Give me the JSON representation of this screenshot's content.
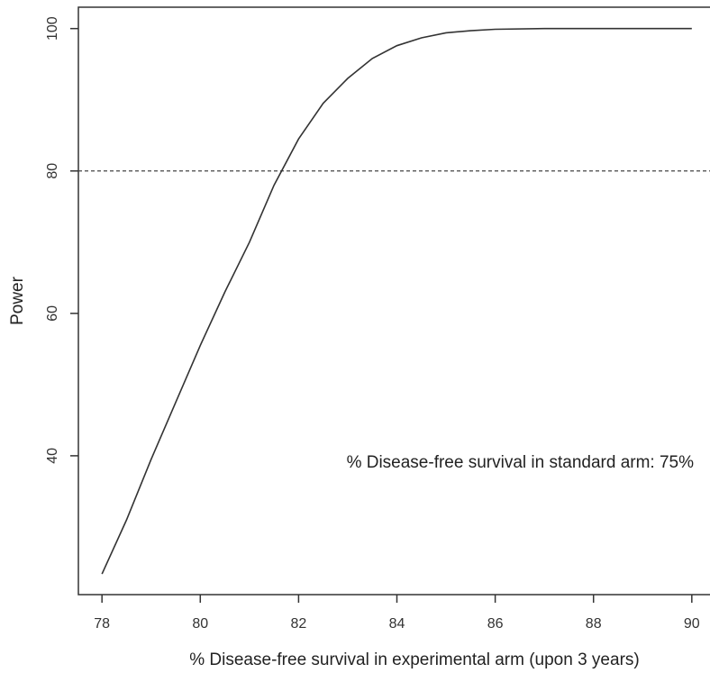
{
  "chart_data": {
    "type": "line",
    "xlabel": "% Disease-free survival in experimental arm (upon 3 years)",
    "ylabel": "Power",
    "annotation": "% Disease-free survival in standard arm: 75%",
    "x": [
      78,
      78.5,
      79,
      79.5,
      80,
      80.5,
      81,
      81.5,
      82,
      82.5,
      83,
      83.5,
      84,
      84.5,
      85,
      85.5,
      86,
      87,
      88,
      89,
      90
    ],
    "values": [
      23.4,
      31,
      39.5,
      47.5,
      55.5,
      63,
      70,
      78,
      84.5,
      89.5,
      93,
      95.8,
      97.6,
      98.7,
      99.4,
      99.7,
      99.9,
      100,
      100,
      100,
      100
    ],
    "color": "#333333",
    "reference_line": 80,
    "xlim": [
      77.52,
      90.37
    ],
    "ylim": [
      20.5,
      103
    ],
    "xticks": [
      78,
      80,
      82,
      84,
      86,
      88,
      90
    ],
    "yticks": [
      40,
      60,
      80,
      100
    ]
  }
}
